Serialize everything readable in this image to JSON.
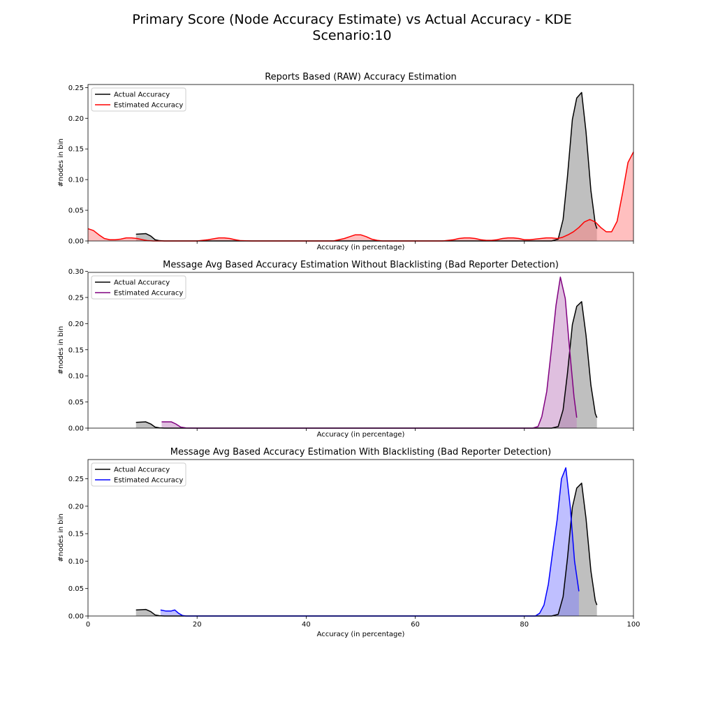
{
  "figure": {
    "title_line1": "Primary Score (Node Accuracy Estimate) vs Actual Accuracy - KDE",
    "title_line2": "Scenario:10"
  },
  "chart_data": [
    {
      "type": "area",
      "title": "Reports Based (RAW) Accuracy Estimation",
      "xlabel": "Accuracy (in percentage)",
      "ylabel": "#nodes in bin",
      "xlim": [
        0,
        100
      ],
      "ylim": [
        0,
        0.255
      ],
      "xticks": [
        0,
        20,
        40,
        60,
        80,
        100
      ],
      "yticks": [
        0.0,
        0.05,
        0.1,
        0.15,
        0.2,
        0.25
      ],
      "ytick_labels": [
        "0.00",
        "0.05",
        "0.10",
        "0.15",
        "0.20",
        "0.25"
      ],
      "show_xtick_labels": false,
      "legend_position": "upper-left",
      "series": [
        {
          "name": "Actual Accuracy",
          "color": "#000000",
          "fill": "#808080",
          "x": [
            8.8,
            10.6,
            11.5,
            12.3,
            13.1,
            14,
            20,
            40,
            60,
            80,
            85,
            86.2,
            87.1,
            87.9,
            88.8,
            89.6,
            90.5,
            91.3,
            92.2,
            93.0,
            93.3
          ],
          "y": [
            0.011,
            0.012,
            0.008,
            0.002,
            0.0005,
            0,
            0,
            0,
            0,
            0,
            0,
            0.003,
            0.035,
            0.105,
            0.198,
            0.233,
            0.242,
            0.178,
            0.082,
            0.028,
            0.02
          ]
        },
        {
          "name": "Estimated Accuracy",
          "color": "#ff0000",
          "fill": "#ff8080",
          "x": [
            0,
            1,
            2,
            3,
            4,
            5,
            6,
            7,
            8,
            9,
            10,
            11,
            12,
            14,
            16,
            18,
            20,
            22,
            24,
            25,
            26,
            27,
            28,
            30,
            35,
            40,
            45,
            46,
            47,
            48,
            49,
            50,
            51,
            52,
            53,
            54,
            56,
            60,
            65,
            67,
            68,
            69,
            70,
            71,
            72,
            73,
            74,
            75,
            76,
            77,
            78,
            79,
            80,
            81,
            82,
            83,
            84,
            85,
            86,
            87,
            88,
            89,
            90,
            91,
            92,
            93,
            94,
            95,
            96,
            97,
            98,
            99,
            100
          ],
          "y": [
            0.02,
            0.017,
            0.01,
            0.004,
            0.002,
            0.002,
            0.003,
            0.005,
            0.005,
            0.004,
            0.002,
            0.0005,
            0,
            0,
            0,
            0,
            0,
            0.002,
            0.005,
            0.005,
            0.004,
            0.002,
            0.0005,
            0,
            0,
            0,
            0,
            0.002,
            0.004,
            0.007,
            0.01,
            0.01,
            0.007,
            0.003,
            0.001,
            0,
            0,
            0,
            0,
            0.002,
            0.004,
            0.005,
            0.005,
            0.004,
            0.002,
            0.001,
            0.001,
            0.002,
            0.004,
            0.005,
            0.005,
            0.004,
            0.002,
            0.002,
            0.003,
            0.004,
            0.005,
            0.005,
            0.004,
            0.006,
            0.01,
            0.015,
            0.022,
            0.031,
            0.035,
            0.031,
            0.022,
            0.015,
            0.015,
            0.032,
            0.078,
            0.128,
            0.145
          ]
        }
      ]
    },
    {
      "type": "area",
      "title": "Message Avg Based Accuracy Estimation Without Blacklisting (Bad Reporter Detection)",
      "xlabel": "Accuracy (in percentage)",
      "ylabel": "#nodes in bin",
      "xlim": [
        0,
        100
      ],
      "ylim": [
        0,
        0.298
      ],
      "xticks": [
        0,
        20,
        40,
        60,
        80,
        100
      ],
      "yticks": [
        0.0,
        0.05,
        0.1,
        0.15,
        0.2,
        0.25,
        0.3
      ],
      "ytick_labels": [
        "0.00",
        "0.05",
        "0.10",
        "0.15",
        "0.20",
        "0.25",
        "0.30"
      ],
      "show_xtick_labels": false,
      "legend_position": "upper-left",
      "series": [
        {
          "name": "Actual Accuracy",
          "color": "#000000",
          "fill": "#808080",
          "x": [
            8.8,
            10.6,
            11.5,
            12.3,
            13.1,
            14,
            20,
            40,
            60,
            80,
            85,
            86.2,
            87.1,
            87.9,
            88.8,
            89.6,
            90.5,
            91.3,
            92.2,
            93.0,
            93.3
          ],
          "y": [
            0.011,
            0.012,
            0.008,
            0.002,
            0.0005,
            0,
            0,
            0,
            0,
            0,
            0,
            0.003,
            0.035,
            0.105,
            0.198,
            0.233,
            0.242,
            0.178,
            0.082,
            0.028,
            0.02
          ]
        },
        {
          "name": "Estimated Accuracy",
          "color": "#800080",
          "fill": "#bf80bf",
          "x": [
            13.5,
            14.5,
            15.3,
            16.1,
            17,
            18,
            20,
            40,
            60,
            80,
            81.5,
            82.5,
            83.2,
            84.1,
            85.0,
            85.8,
            86.6,
            87.5,
            88.3,
            89.1,
            89.6
          ],
          "y": [
            0.012,
            0.012,
            0.012,
            0.008,
            0.002,
            0.0003,
            0,
            0,
            0,
            0,
            0,
            0.003,
            0.022,
            0.07,
            0.155,
            0.235,
            0.289,
            0.248,
            0.15,
            0.06,
            0.02
          ]
        }
      ]
    },
    {
      "type": "area",
      "title": "Message Avg Based Accuracy Estimation With Blacklisting (Bad Reporter Detection)",
      "xlabel": "Accuracy (in percentage)",
      "ylabel": "#nodes in bin",
      "xlim": [
        0,
        100
      ],
      "ylim": [
        0,
        0.285
      ],
      "xticks": [
        0,
        20,
        40,
        60,
        80,
        100
      ],
      "xtick_labels": [
        "0",
        "20",
        "40",
        "60",
        "80",
        "100"
      ],
      "yticks": [
        0.0,
        0.05,
        0.1,
        0.15,
        0.2,
        0.25
      ],
      "ytick_labels": [
        "0.00",
        "0.05",
        "0.10",
        "0.15",
        "0.20",
        "0.25"
      ],
      "show_xtick_labels": true,
      "legend_position": "upper-left",
      "series": [
        {
          "name": "Actual Accuracy",
          "color": "#000000",
          "fill": "#808080",
          "x": [
            8.8,
            10.6,
            11.5,
            12.3,
            13.1,
            14,
            20,
            40,
            60,
            80,
            85,
            86.2,
            87.1,
            87.9,
            88.8,
            89.6,
            90.5,
            91.3,
            92.2,
            93.0,
            93.3
          ],
          "y": [
            0.011,
            0.012,
            0.008,
            0.002,
            0.0005,
            0,
            0,
            0,
            0,
            0,
            0,
            0.003,
            0.035,
            0.105,
            0.198,
            0.233,
            0.242,
            0.178,
            0.082,
            0.028,
            0.02
          ]
        },
        {
          "name": "Estimated Accuracy",
          "color": "#0000ff",
          "fill": "#8080ff",
          "x": [
            13.3,
            14.3,
            15.2,
            15.9,
            16.6,
            17.3,
            18,
            20,
            40,
            60,
            80,
            82,
            82.8,
            83.6,
            84.4,
            85.2,
            86.0,
            86.8,
            87.6,
            88.4,
            89.2,
            90.0
          ],
          "y": [
            0.011,
            0.009,
            0.009,
            0.011,
            0.005,
            0.001,
            0,
            0,
            0,
            0,
            0,
            0,
            0.005,
            0.02,
            0.058,
            0.118,
            0.175,
            0.25,
            0.27,
            0.2,
            0.1,
            0.045
          ]
        }
      ]
    }
  ]
}
